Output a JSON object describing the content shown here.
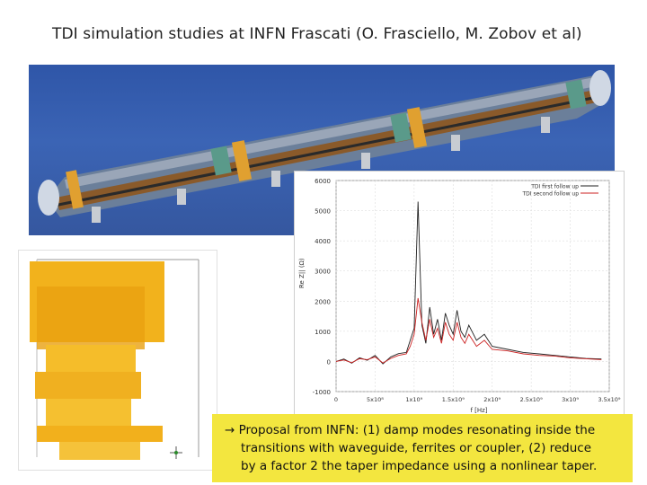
{
  "slide": {
    "title": "TDI simulation studies at INFN Frascati (O. Frasciello, M. Zobov et al)"
  },
  "cad_image": {
    "name": "tdi-beam-pipe-cad"
  },
  "model_image": {
    "name": "transition-3d-model"
  },
  "chart_data": {
    "type": "line",
    "title": "",
    "xlabel": "f [Hz]",
    "ylabel": "Re Z|| (Ω)",
    "xlim": [
      0,
      3500000000
    ],
    "ylim": [
      -1000,
      6000
    ],
    "x_ticks": [
      "0",
      "5x10⁸",
      "1x10⁹",
      "1.5x10⁹",
      "2x10⁹",
      "2.5x10⁹",
      "3x10⁹",
      "3.5x10⁹"
    ],
    "y_ticks": [
      "6000",
      "5000",
      "4000",
      "3000",
      "2000",
      "1000",
      "0",
      "-1000"
    ],
    "legend": "top-right",
    "series": [
      {
        "name": "TDI first follow up",
        "color": "#222222",
        "x": [
          0,
          100000000,
          200000000,
          300000000,
          400000000,
          500000000,
          600000000,
          700000000,
          800000000,
          900000000,
          950000000,
          1000000000,
          1050000000,
          1100000000,
          1150000000,
          1200000000,
          1250000000,
          1300000000,
          1350000000,
          1400000000,
          1450000000,
          1500000000,
          1550000000,
          1600000000,
          1650000000,
          1700000000,
          1800000000,
          1900000000,
          2000000000,
          2200000000,
          2400000000,
          2600000000,
          2800000000,
          3000000000,
          3200000000,
          3400000000
        ],
        "y": [
          0,
          80,
          -60,
          120,
          40,
          200,
          -80,
          150,
          260,
          300,
          700,
          1100,
          5300,
          1200,
          600,
          1800,
          900,
          1400,
          700,
          1600,
          1200,
          900,
          1700,
          1000,
          800,
          1200,
          700,
          900,
          500,
          400,
          300,
          250,
          200,
          150,
          100,
          80
        ]
      },
      {
        "name": "TDI second follow up",
        "color": "#cc2222",
        "x": [
          0,
          100000000,
          200000000,
          300000000,
          400000000,
          500000000,
          600000000,
          700000000,
          800000000,
          900000000,
          950000000,
          1000000000,
          1050000000,
          1100000000,
          1150000000,
          1200000000,
          1250000000,
          1300000000,
          1350000000,
          1400000000,
          1450000000,
          1500000000,
          1550000000,
          1600000000,
          1650000000,
          1700000000,
          1800000000,
          1900000000,
          2000000000,
          2200000000,
          2400000000,
          2600000000,
          2800000000,
          3000000000,
          3200000000,
          3400000000
        ],
        "y": [
          0,
          50,
          -40,
          90,
          60,
          150,
          -50,
          100,
          200,
          250,
          500,
          900,
          2100,
          1300,
          700,
          1400,
          800,
          1100,
          600,
          1300,
          900,
          700,
          1300,
          800,
          600,
          900,
          500,
          700,
          400,
          350,
          250,
          200,
          180,
          120,
          90,
          60
        ]
      }
    ]
  },
  "callout": {
    "line1": "→ Proposal from INFN: (1) damp modes resonating inside the",
    "line2": "transitions with waveguide, ferrites or coupler, (2) reduce",
    "line3": "by a factor 2 the taper impedance using a nonlinear taper."
  }
}
